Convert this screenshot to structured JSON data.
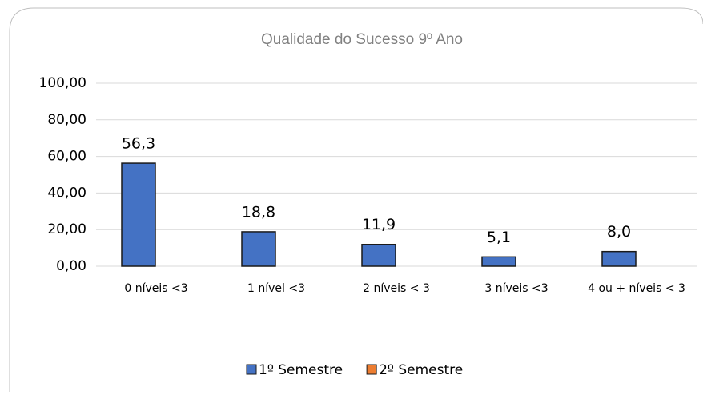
{
  "chart_data": {
    "type": "bar",
    "title": "Qualidade do Sucesso 9º Ano",
    "categories": [
      "0 níveis <3",
      "1 nível <3",
      "2 níveis < 3",
      "3 níveis <3",
      "4 ou + níveis < 3"
    ],
    "series": [
      {
        "name": "1º Semestre",
        "color": "#4472c4",
        "values": [
          56.3,
          18.8,
          11.9,
          5.1,
          8.0
        ],
        "value_labels": [
          "56,3",
          "18,8",
          "11,9",
          "5,1",
          "8,0"
        ]
      },
      {
        "name": "2º Semestre",
        "color": "#ed7d31",
        "values": [
          null,
          null,
          null,
          null,
          null
        ]
      }
    ],
    "ylim": [
      0,
      100
    ],
    "yticks": [
      {
        "value": 0,
        "label": "0,00"
      },
      {
        "value": 20,
        "label": "20,00"
      },
      {
        "value": 40,
        "label": "40,00"
      },
      {
        "value": 60,
        "label": "60,00"
      },
      {
        "value": 80,
        "label": "80,00"
      },
      {
        "value": 100,
        "label": "100,00"
      }
    ],
    "grid": true,
    "legend": "bottom"
  }
}
